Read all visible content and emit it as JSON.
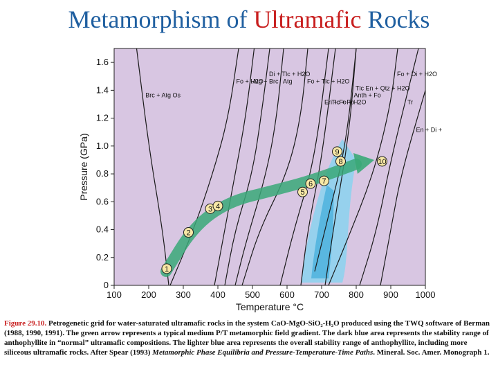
{
  "title": {
    "part1": "Metamorphism of ",
    "part2": "Ultramafic",
    "part3": " Rocks"
  },
  "chart_data": {
    "type": "line",
    "title": "Metamorphism of Ultramafic Rocks",
    "xlabel": "Temperature °C",
    "ylabel": "Pressure (GPa)",
    "xlim": [
      100,
      1000
    ],
    "ylim": [
      0,
      1.7
    ],
    "xticks": [
      100,
      200,
      300,
      400,
      500,
      600,
      700,
      800,
      900,
      1000
    ],
    "yticks": [
      0,
      0.2,
      0.4,
      0.6,
      0.8,
      1.0,
      1.2,
      1.4,
      1.6
    ],
    "ytick_labels": [
      "0",
      "0.2",
      "0.4",
      "0.6",
      "0.8",
      "1.0",
      "1.2",
      "1.4",
      "1.6"
    ],
    "grid": false,
    "background_color": "#d8c6e2",
    "reactions": [
      {
        "label": "Brc + Atg\nOs",
        "points": [
          [
            258,
            0
          ],
          [
            240,
            0.4
          ],
          [
            200,
            1.0
          ],
          [
            165,
            1.7
          ]
        ]
      },
      {
        "label": "Fo + H2O",
        "points": [
          [
            262,
            0
          ],
          [
            330,
            0.4
          ],
          [
            385,
            0.8
          ],
          [
            430,
            1.2
          ],
          [
            460,
            1.7
          ]
        ]
      },
      {
        "label": "Atg + Brc",
        "points": [
          [
            390,
            0
          ],
          [
            420,
            0.4
          ],
          [
            450,
            0.8
          ],
          [
            480,
            1.2
          ],
          [
            505,
            1.7
          ]
        ]
      },
      {
        "label": "Di + Tlc + H2O",
        "points": [
          [
            420,
            0
          ],
          [
            450,
            0.4
          ],
          [
            500,
            0.8
          ],
          [
            530,
            1.3
          ],
          [
            550,
            1.7
          ]
        ]
      },
      {
        "label": "Atg",
        "points": [
          [
            450,
            0
          ],
          [
            480,
            0.3
          ],
          [
            540,
            0.8
          ],
          [
            570,
            1.2
          ],
          [
            590,
            1.7
          ]
        ]
      },
      {
        "label": "Fo + Tlc + H2O",
        "points": [
          [
            470,
            0
          ],
          [
            520,
            0.4
          ],
          [
            600,
            0.8
          ],
          [
            640,
            1.2
          ],
          [
            660,
            1.7
          ]
        ]
      },
      {
        "label": "En + Fo + H2O",
        "points": [
          [
            580,
            0
          ],
          [
            620,
            0.4
          ],
          [
            680,
            0.9
          ],
          [
            720,
            1.7
          ]
        ]
      },
      {
        "label": "Tlc + Fo",
        "points": [
          [
            640,
            0
          ],
          [
            660,
            0.4
          ],
          [
            700,
            0.9
          ],
          [
            740,
            1.7
          ]
        ]
      },
      {
        "label": "Anth + Fo",
        "points": [
          [
            680,
            0.1
          ],
          [
            720,
            0.5
          ],
          [
            770,
            1.0
          ],
          [
            800,
            1.7
          ]
        ]
      },
      {
        "label": "Tlc\nEn + Qtz + H2O",
        "points": [
          [
            710,
            0
          ],
          [
            740,
            0.5
          ],
          [
            780,
            1.1
          ],
          [
            800,
            1.7
          ]
        ]
      },
      {
        "label": "Fo + Di + H2O",
        "points": [
          [
            720,
            0
          ],
          [
            770,
            0.3
          ],
          [
            850,
            0.8
          ],
          [
            900,
            1.3
          ],
          [
            920,
            1.7
          ]
        ]
      },
      {
        "label": "Tr",
        "points": [
          [
            810,
            0
          ],
          [
            860,
            0.4
          ],
          [
            900,
            0.9
          ],
          [
            980,
            1.7
          ]
        ]
      },
      {
        "label": "En + Di + Qtz + H2O",
        "points": [
          [
            870,
            0
          ],
          [
            900,
            0.4
          ],
          [
            930,
            0.8
          ],
          [
            1000,
            1.4
          ]
        ]
      }
    ],
    "points": [
      {
        "label": "1",
        "x": 252,
        "y": 0.12
      },
      {
        "label": "2",
        "x": 315,
        "y": 0.38
      },
      {
        "label": "3",
        "x": 378,
        "y": 0.55
      },
      {
        "label": "4",
        "x": 400,
        "y": 0.57
      },
      {
        "label": "5",
        "x": 645,
        "y": 0.67
      },
      {
        "label": "6",
        "x": 668,
        "y": 0.73
      },
      {
        "label": "7",
        "x": 707,
        "y": 0.75
      },
      {
        "label": "8",
        "x": 755,
        "y": 0.89
      },
      {
        "label": "9",
        "x": 745,
        "y": 0.96
      },
      {
        "label": "10",
        "x": 875,
        "y": 0.89
      }
    ]
  },
  "caption": {
    "figure_label": "Figure 29.10.",
    "text": " Petrogenetic grid for water-saturated ultramafic rocks in the system CaO-MgO-SiO₂-H₂O produced using the TWQ software of Berman (1988, 1990, 1991). The green arrow represents a typical medium P/T metamorphic field gradient. The dark blue area represents the stability range of anthophyllite in “normal” ultramafic compositions. The lighter blue area represents the overall stability range of anthophyllite, including more siliceous ultramafic rocks. After Spear (1993) ",
    "book_title": "Metamorphic Phase Equilibria and Pressure-Temperature-Time Paths",
    "tail": ". Mineral. Soc. Amer. Monograph 1."
  }
}
